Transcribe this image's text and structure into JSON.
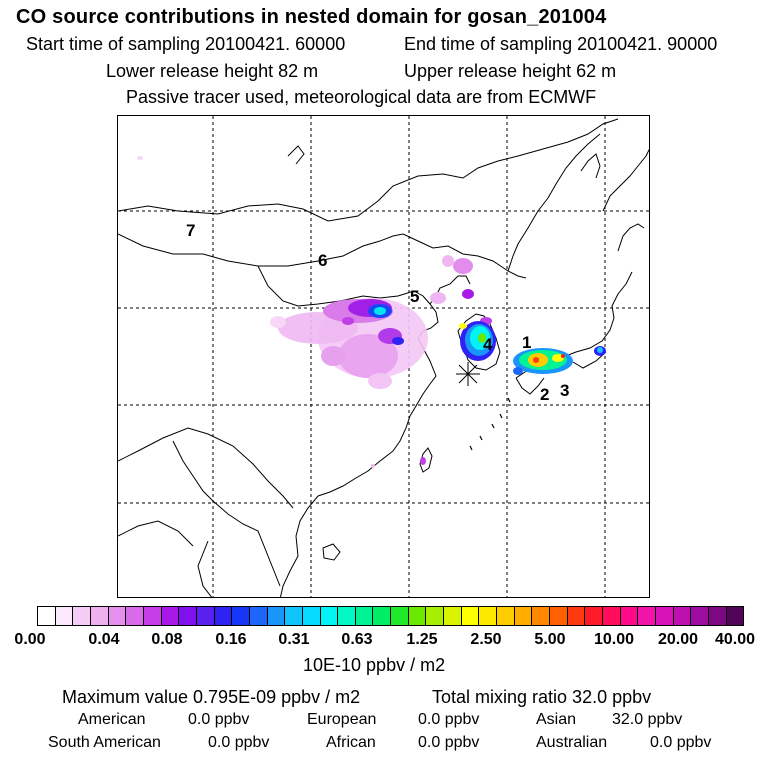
{
  "title": "CO  source contributions in nested domain for gosan_201004",
  "header": {
    "start_time": "Start time of sampling 20100421. 60000",
    "end_time": "End time of sampling 20100421. 90000",
    "lower_release": "Lower release height   82 m",
    "upper_release": "Upper release height   62 m",
    "tracer_note": "Passive tracer used, meteorological data are from ECMWF"
  },
  "map": {
    "region_labels": [
      "1",
      "2",
      "3",
      "4",
      "5",
      "6",
      "7"
    ],
    "receptor": "gosan",
    "receptor_icon": "asterisk-icon"
  },
  "colorbar": {
    "ticks": [
      "0.00",
      "0.04",
      "0.08",
      "0.16",
      "0.31",
      "0.63",
      "1.25",
      "2.50",
      "5.00",
      "10.00",
      "20.00",
      "40.00"
    ],
    "unit": "10E-10 ppbv / m2",
    "colors": [
      "#ffffff",
      "#fbe8fb",
      "#f5ccf5",
      "#efb0ef",
      "#e68fee",
      "#d96ae9",
      "#c43fe8",
      "#a818e8",
      "#8010ee",
      "#5a20f0",
      "#2f22f4",
      "#1636f6",
      "#1e66f8",
      "#1a96fa",
      "#11c4fc",
      "#06dafd",
      "#00f4f4",
      "#00f8c4",
      "#00f494",
      "#00ee66",
      "#20e82a",
      "#6ae800",
      "#a8ee00",
      "#d8f400",
      "#ffff00",
      "#ffe800",
      "#ffcc00",
      "#ffae00",
      "#ff8800",
      "#ff6000",
      "#ff3a10",
      "#ff1a2a",
      "#ff0c5a",
      "#ff0a88",
      "#f014aa",
      "#d814b8",
      "#bc10b0",
      "#9c0ca0",
      "#7c0884",
      "#520458"
    ]
  },
  "stats": {
    "max_value": "Maximum value  0.795E-09 ppbv / m2",
    "total_mixing": "Total mixing ratio      32.0 ppbv",
    "regions": [
      {
        "name": "American",
        "value": "0.0 ppbv"
      },
      {
        "name": "European",
        "value": "0.0 ppbv"
      },
      {
        "name": "Asian",
        "value": "32.0 ppbv"
      },
      {
        "name": "South American",
        "value": "0.0 ppbv"
      },
      {
        "name": "African",
        "value": "0.0 ppbv"
      },
      {
        "name": "Australian",
        "value": "0.0 ppbv"
      }
    ]
  }
}
